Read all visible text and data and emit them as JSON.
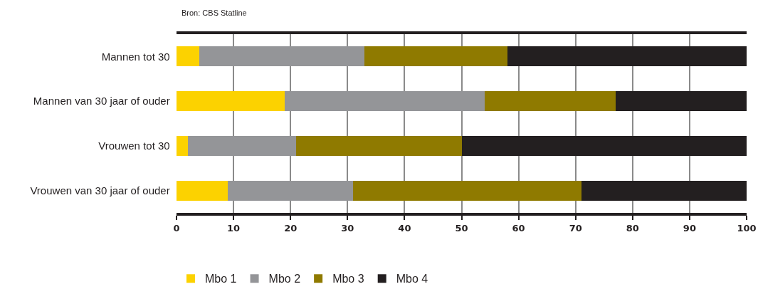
{
  "chart_data": {
    "type": "bar",
    "orientation": "horizontal",
    "stacked": true,
    "annotations": [
      "Bron: CBS Statline"
    ],
    "categories": [
      "Mannen tot 30",
      "Mannen van 30 jaar of ouder",
      "Vrouwen tot 30",
      "Vrouwen van 30 jaar of ouder"
    ],
    "series": [
      {
        "name": "Mbo 1",
        "color": "#fcd200",
        "values": [
          4,
          19,
          2,
          9
        ]
      },
      {
        "name": "Mbo 2",
        "color": "#949598",
        "values": [
          29,
          35,
          19,
          22
        ]
      },
      {
        "name": "Mbo 3",
        "color": "#8f7a00",
        "values": [
          25,
          23,
          29,
          40
        ]
      },
      {
        "name": "Mbo 4",
        "color": "#231f20",
        "values": [
          42,
          23,
          50,
          29
        ]
      }
    ],
    "xlim": [
      0,
      100
    ],
    "xticks": [
      0,
      10,
      20,
      30,
      40,
      50,
      60,
      70,
      80,
      90,
      100
    ],
    "grid": "x",
    "legend": "bottom left"
  }
}
